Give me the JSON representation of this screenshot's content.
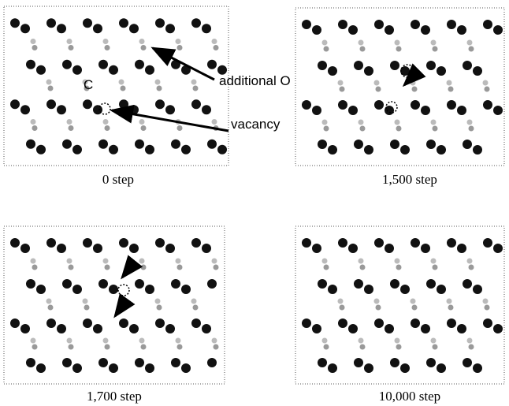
{
  "panels": [
    {
      "caption": "0 step"
    },
    {
      "caption": "1,500 step"
    },
    {
      "caption": "1,700 step"
    },
    {
      "caption": "10,000 step"
    }
  ],
  "annotations": {
    "additional_o": "additional O",
    "vacancy": "vacancy",
    "carbon": "C"
  }
}
